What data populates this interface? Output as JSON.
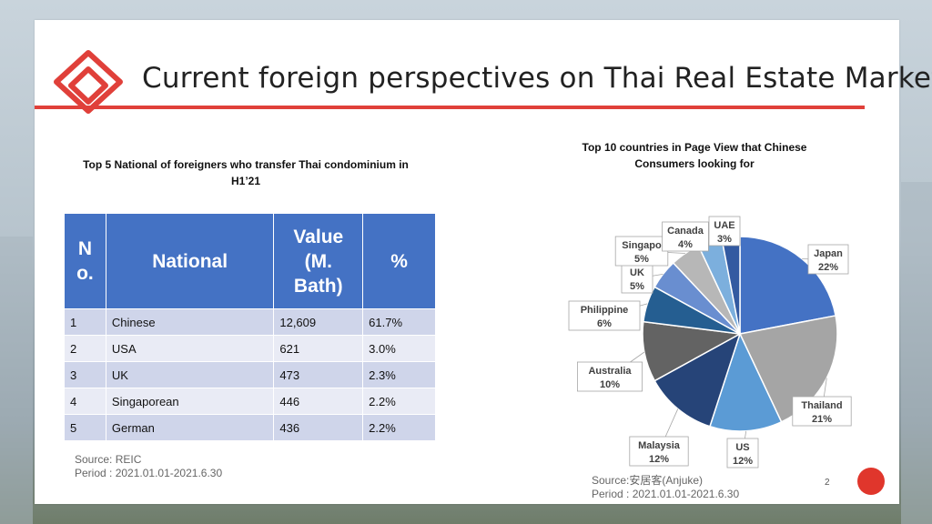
{
  "slide": {
    "title": "Current foreign perspectives on Thai Real Estate Market",
    "page_number": "2"
  },
  "table": {
    "title_line1": "Top 5 National of foreigners who transfer Thai condominium in",
    "title_line2": "H1’21",
    "headers": [
      "N o.",
      "National",
      "Value (M. Bath)",
      "%"
    ],
    "rows": [
      {
        "no": "1",
        "national": "Chinese",
        "value": "12,609",
        "pct": "61.7%"
      },
      {
        "no": "2",
        "national": "USA",
        "value": "621",
        "pct": "3.0%"
      },
      {
        "no": "3",
        "national": "UK",
        "value": "473",
        "pct": "2.3%"
      },
      {
        "no": "4",
        "national": "Singaporean",
        "value": "446",
        "pct": "2.2%"
      },
      {
        "no": "5",
        "national": "German",
        "value": "436",
        "pct": "2.2%"
      }
    ],
    "source_line1": "Source: REIC",
    "source_line2": "Period : 2021.01.01-2021.6.30",
    "header_color": "#4472c4"
  },
  "chart_data": {
    "type": "pie",
    "title_line1": "Top 10 countries in Page View that Chinese",
    "title_line2": "Consumers looking for",
    "slices": [
      {
        "label": "Japan",
        "value": 22,
        "text": "22%",
        "color": "#4472c4"
      },
      {
        "label": "Thailand",
        "value": 21,
        "text": "21%",
        "color": "#a5a5a5"
      },
      {
        "label": "US",
        "value": 12,
        "text": "12%",
        "color": "#5b9bd5"
      },
      {
        "label": "Malaysia",
        "value": 12,
        "text": "12%",
        "color": "#264478"
      },
      {
        "label": "Australia",
        "value": 10,
        "text": "10%",
        "color": "#636363"
      },
      {
        "label": "Philippine",
        "value": 6,
        "text": "6%",
        "color": "#255e91"
      },
      {
        "label": "UK",
        "value": 5,
        "text": "5%",
        "color": "#698ed0"
      },
      {
        "label": "Singapore",
        "value": 5,
        "text": "5%",
        "color": "#b7b7b7"
      },
      {
        "label": "Canada",
        "value": 4,
        "text": "4%",
        "color": "#7cafdd"
      },
      {
        "label": "UAE",
        "value": 3,
        "text": "3%",
        "color": "#335aa1"
      }
    ],
    "label_display": [
      "Japan",
      "Thailand",
      "US",
      "Malaysia",
      "Australia",
      "Philippine",
      "UK",
      "Singapo",
      "Canada",
      "UAE"
    ],
    "source_line1": "Source:安居客(Anjuke)",
    "source_line2": "Period : 2021.01.01-2021.6.30"
  },
  "colors": {
    "accent_red": "#e0403a",
    "dot_red": "#e0362c"
  }
}
